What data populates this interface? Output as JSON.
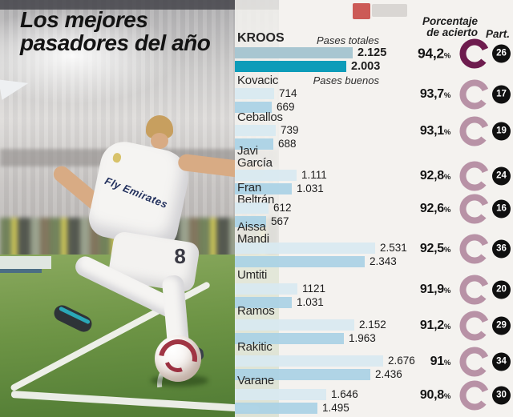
{
  "title": {
    "line1": "Los mejores",
    "line2": "pasadores del año"
  },
  "photo": {
    "jersey_text": "Fly Emirates",
    "shorts_number": "8"
  },
  "colors": {
    "bar_totales": "#d8e9f1",
    "bar_buenos": "#a9d1e5",
    "bar_totales_highlight": "#a8c6d1",
    "bar_buenos_highlight": "#0d9cb9",
    "ring": "#6e1c4e",
    "badge_bg": "#101010",
    "badge_text": "#ffffff"
  },
  "chart_data": {
    "type": "bar",
    "orientation": "horizontal",
    "title": "Los mejores pasadores del año",
    "series_labels": {
      "totales": "Pases totales",
      "buenos": "Pases buenos"
    },
    "headers": {
      "percent_line1": "Porcentaje",
      "percent_line2": "de acierto",
      "part": "Part."
    },
    "percent_sign": "%",
    "players": [
      {
        "name": "KROOS",
        "lines": [
          "KROOS"
        ],
        "totales": "2.125",
        "buenos": "2.003",
        "pct": "94,2",
        "part": "26",
        "highlight": true
      },
      {
        "name": "Kovacic",
        "lines": [
          "Kovacic"
        ],
        "totales": "714",
        "buenos": "669",
        "pct": "93,7",
        "part": "17",
        "highlight": false
      },
      {
        "name": "Ceballos",
        "lines": [
          "Ceballos"
        ],
        "totales": "739",
        "buenos": "688",
        "pct": "93,1",
        "part": "19",
        "highlight": false
      },
      {
        "name": "Javi García",
        "lines": [
          "Javi",
          "García"
        ],
        "totales": "1.111",
        "buenos": "1.031",
        "pct": "92,8",
        "part": "24",
        "highlight": false
      },
      {
        "name": "Fran Beltrán",
        "lines": [
          "Fran",
          "Beltrán"
        ],
        "totales": "612",
        "buenos": "567",
        "pct": "92,6",
        "part": "16",
        "highlight": false
      },
      {
        "name": "Aissa Mandi",
        "lines": [
          "Aissa",
          "Mandi"
        ],
        "totales": "2.531",
        "buenos": "2.343",
        "pct": "92,5",
        "part": "36",
        "highlight": false
      },
      {
        "name": "Umtiti",
        "lines": [
          "Umtiti"
        ],
        "totales": "1121",
        "buenos": "1.031",
        "pct": "91,9",
        "part": "20",
        "highlight": false
      },
      {
        "name": "Ramos",
        "lines": [
          "Ramos"
        ],
        "totales": "2.152",
        "buenos": "1.963",
        "pct": "91,2",
        "part": "29",
        "highlight": false
      },
      {
        "name": "Rakitic",
        "lines": [
          "Rakitic"
        ],
        "totales": "2.676",
        "buenos": "2.436",
        "pct": "91",
        "part": "34",
        "highlight": false
      },
      {
        "name": "Varane",
        "lines": [
          "Varane"
        ],
        "totales": "1.646",
        "buenos": "1.495",
        "pct": "90,8",
        "part": "30",
        "highlight": false
      }
    ]
  }
}
